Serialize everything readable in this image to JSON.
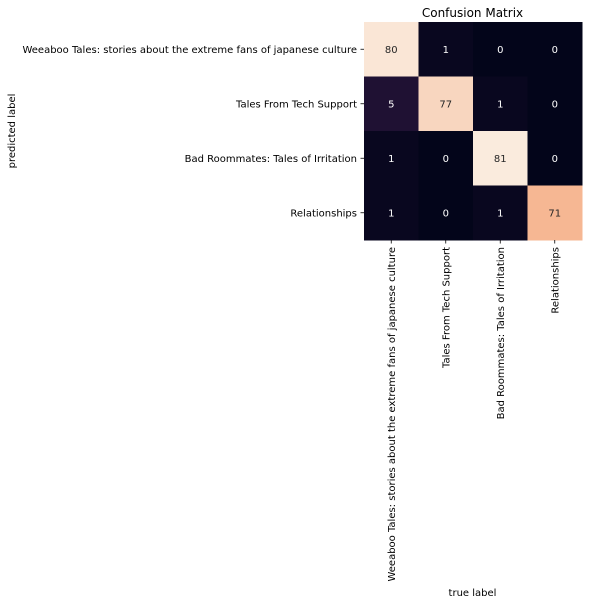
{
  "chart_data": {
    "type": "heatmap",
    "title": "Confusion Matrix",
    "xlabel": "true label",
    "ylabel": "predicted label",
    "x_categories": [
      "Weeaboo Tales: stories about the extreme fans of japanese culture",
      "Tales From Tech Support",
      "Bad Roommates: Tales of Irritation",
      "Relationships"
    ],
    "y_categories": [
      "Weeaboo Tales: stories about the extreme fans of japanese culture",
      "Tales From Tech Support",
      "Bad Roommates: Tales of Irritation",
      "Relationships"
    ],
    "values": [
      [
        80,
        1,
        0,
        0
      ],
      [
        5,
        77,
        1,
        0
      ],
      [
        1,
        0,
        81,
        0
      ],
      [
        1,
        0,
        1,
        71
      ]
    ],
    "vmin": 0,
    "vmax": 81,
    "colormap": "rocket",
    "colorbar": false,
    "grid": false
  }
}
